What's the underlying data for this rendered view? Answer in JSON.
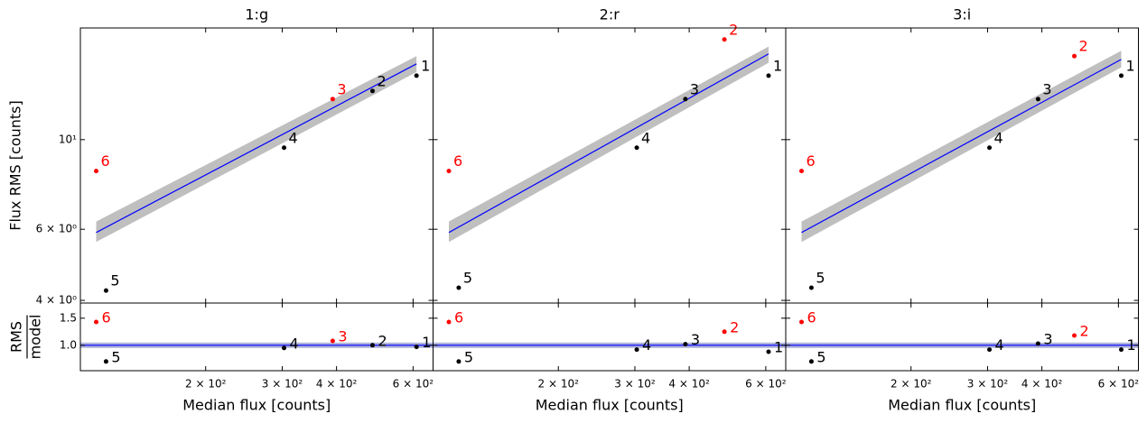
{
  "chart_data": [
    {
      "type": "scatter",
      "title": "1:g",
      "ylabel": "Flux RMS [counts]",
      "xscale": "log",
      "yscale": "log",
      "xlim": [
        103,
        667
      ],
      "ylim": [
        3.94,
        18.9
      ],
      "yticks": [
        {
          "value": 4,
          "label": "4 × 10⁰"
        },
        {
          "value": 6,
          "label": "6 × 10⁰"
        },
        {
          "value": 10,
          "label": "10¹"
        }
      ],
      "labels": [
        "1",
        "2",
        "3",
        "4",
        "5",
        "6"
      ],
      "x": [
        611,
        484,
        392,
        303,
        118,
        112
      ],
      "y": [
        14.4,
        13.2,
        12.6,
        9.55,
        4.23,
        8.36
      ],
      "colors": [
        "black",
        "black",
        "red",
        "black",
        "black",
        "red"
      ],
      "fit": {
        "x": [
          112,
          611
        ],
        "y": [
          5.89,
          15.4
        ],
        "band_lower": [
          5.58,
          14.7
        ],
        "band_upper": [
          6.27,
          16.1
        ],
        "color": "blue",
        "band_color": "#bfbfbf"
      }
    },
    {
      "type": "residual",
      "ylabel_numerator": "RMS",
      "ylabel_denominator": "model",
      "xlabel": "Median flux [counts]",
      "xscale": "log",
      "yscale": "linear",
      "xlim": [
        103,
        667
      ],
      "ylim": [
        0.53,
        1.78
      ],
      "xticks": [
        {
          "value": 200,
          "label": "2 × 10²"
        },
        {
          "value": 300,
          "label": "3 × 10²"
        },
        {
          "value": 400,
          "label": "4 × 10²"
        },
        {
          "value": 600,
          "label": "6 × 10²"
        }
      ],
      "yticks": [
        {
          "value": 1,
          "label": "1.0"
        },
        {
          "value": 1.5,
          "label": "1.5"
        }
      ],
      "labels": [
        "1",
        "2",
        "3",
        "4",
        "5",
        "6"
      ],
      "x": [
        611,
        484,
        392,
        303,
        118,
        112
      ],
      "y": [
        0.97,
        1.0,
        1.08,
        0.95,
        0.7,
        1.43
      ],
      "colors": [
        "black",
        "black",
        "red",
        "black",
        "black",
        "red"
      ],
      "hline": {
        "y": 1,
        "band": [
          0.95,
          1.05
        ],
        "color": "blue",
        "band_color": "#aeb3d9"
      }
    },
    {
      "type": "scatter",
      "title": "2:r",
      "xscale": "log",
      "yscale": "log",
      "xlim": [
        103,
        667
      ],
      "ylim": [
        3.94,
        18.9
      ],
      "labels": [
        "1",
        "2",
        "3",
        "4",
        "5",
        "6"
      ],
      "x": [
        609,
        482,
        392,
        303,
        118,
        112
      ],
      "y": [
        14.4,
        17.7,
        12.6,
        9.55,
        4.3,
        8.36
      ],
      "colors": [
        "black",
        "red",
        "black",
        "black",
        "black",
        "red"
      ],
      "fit": {
        "x": [
          112,
          609
        ],
        "y": [
          5.89,
          16.3
        ],
        "band_lower": [
          5.58,
          15.5
        ],
        "band_upper": [
          6.27,
          17.0
        ],
        "color": "blue",
        "band_color": "#bfbfbf"
      }
    },
    {
      "type": "residual",
      "xlabel": "Median flux [counts]",
      "xscale": "log",
      "yscale": "linear",
      "xlim": [
        103,
        667
      ],
      "ylim": [
        0.53,
        1.78
      ],
      "xticks": [
        {
          "value": 200,
          "label": "2 × 10²"
        },
        {
          "value": 300,
          "label": "3 × 10²"
        },
        {
          "value": 400,
          "label": "4 × 10²"
        },
        {
          "value": 600,
          "label": "6 × 10²"
        }
      ],
      "labels": [
        "1",
        "2",
        "3",
        "4",
        "5",
        "6"
      ],
      "x": [
        609,
        482,
        392,
        303,
        118,
        112
      ],
      "y": [
        0.88,
        1.25,
        1.02,
        0.92,
        0.7,
        1.43
      ],
      "colors": [
        "black",
        "red",
        "black",
        "black",
        "black",
        "red"
      ],
      "hline": {
        "y": 1,
        "band": [
          0.95,
          1.05
        ],
        "color": "blue",
        "band_color": "#aeb3d9"
      }
    },
    {
      "type": "scatter",
      "title": "3:i",
      "xscale": "log",
      "yscale": "log",
      "xlim": [
        103,
        667
      ],
      "ylim": [
        3.94,
        18.9
      ],
      "labels": [
        "1",
        "2",
        "3",
        "4",
        "5",
        "6"
      ],
      "x": [
        609,
        475,
        392,
        303,
        118,
        112
      ],
      "y": [
        14.4,
        16.1,
        12.6,
        9.55,
        4.3,
        8.36
      ],
      "colors": [
        "black",
        "red",
        "black",
        "black",
        "black",
        "red"
      ],
      "fit": {
        "x": [
          112,
          609
        ],
        "y": [
          5.89,
          15.8
        ],
        "band_lower": [
          5.58,
          15.1
        ],
        "band_upper": [
          6.27,
          16.6
        ],
        "color": "blue",
        "band_color": "#bfbfbf"
      }
    },
    {
      "type": "residual",
      "xlabel": "Median flux [counts]",
      "xscale": "log",
      "yscale": "linear",
      "xlim": [
        103,
        667
      ],
      "ylim": [
        0.53,
        1.78
      ],
      "xticks": [
        {
          "value": 200,
          "label": "2 × 10²"
        },
        {
          "value": 300,
          "label": "3 × 10²"
        },
        {
          "value": 400,
          "label": "4 × 10²"
        },
        {
          "value": 600,
          "label": "6 × 10²"
        }
      ],
      "labels": [
        "1",
        "2",
        "3",
        "4",
        "5",
        "6"
      ],
      "x": [
        609,
        475,
        392,
        303,
        118,
        112
      ],
      "y": [
        0.92,
        1.18,
        1.03,
        0.92,
        0.7,
        1.43
      ],
      "colors": [
        "black",
        "red",
        "black",
        "black",
        "black",
        "red"
      ],
      "hline": {
        "y": 1,
        "band": [
          0.95,
          1.05
        ],
        "color": "blue",
        "band_color": "#aeb3d9"
      }
    }
  ]
}
